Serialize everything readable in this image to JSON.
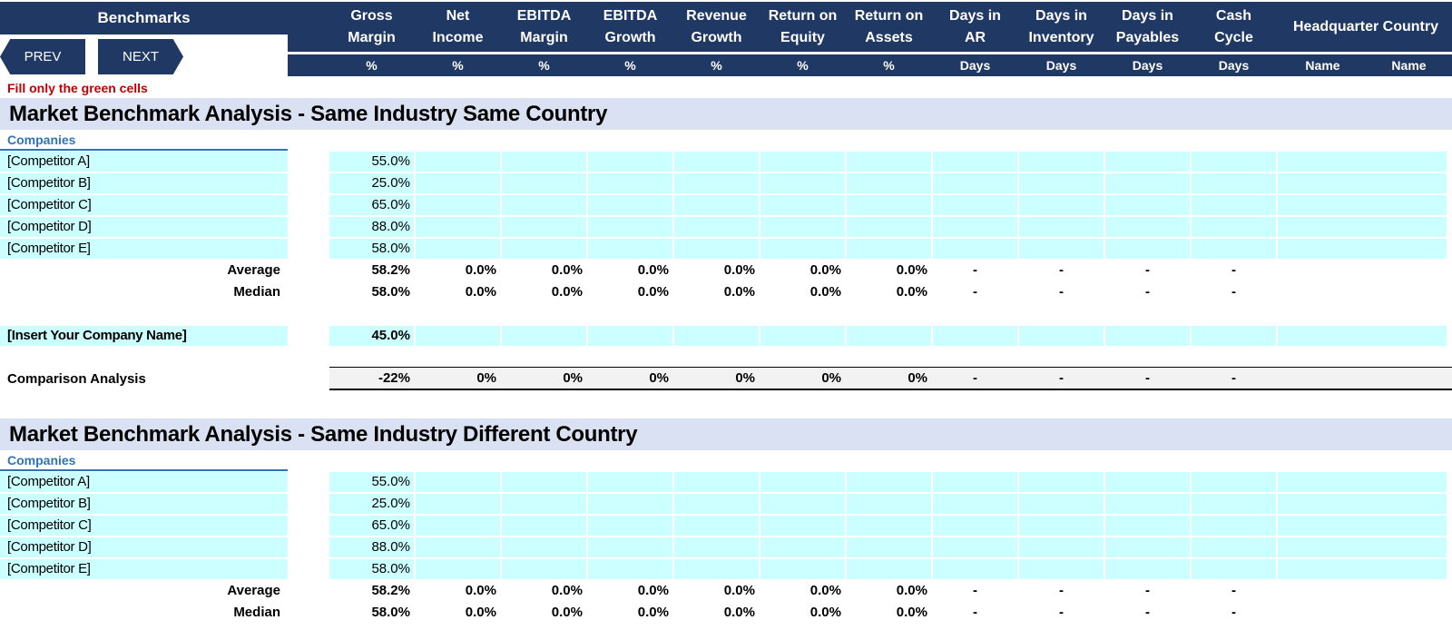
{
  "app": {
    "title": "Benchmarks",
    "prev_label": "PREV",
    "next_label": "NEXT",
    "note": "Fill only the green cells",
    "colors": {
      "header": "#1f3864",
      "input_cell": "#ccffff",
      "band": "#d9e1f2",
      "note": "#c00000",
      "companies": "#2e75b6"
    }
  },
  "columns": [
    {
      "title": "Gross\nMargin",
      "unit": "%"
    },
    {
      "title": "Net\nIncome",
      "unit": "%"
    },
    {
      "title": "EBITDA\nMargin",
      "unit": "%"
    },
    {
      "title": "EBITDA\nGrowth",
      "unit": "%"
    },
    {
      "title": "Revenue\nGrowth",
      "unit": "%"
    },
    {
      "title": "Return on\nEquity",
      "unit": "%"
    },
    {
      "title": "Return on\nAssets",
      "unit": "%"
    },
    {
      "title": "Days in\nAR",
      "unit": "Days"
    },
    {
      "title": "Days in\nInventory",
      "unit": "Days"
    },
    {
      "title": "Days in\nPayables",
      "unit": "Days"
    },
    {
      "title": "Cash\nCycle",
      "unit": "Days"
    }
  ],
  "hq_column": {
    "title": "Headquarter Country",
    "unit1": "Name",
    "unit2": "Name"
  },
  "sections": [
    {
      "title": "Market Benchmark Analysis - Same Industry Same Country",
      "companies_label": "Companies",
      "competitors": [
        {
          "name": "[Competitor A]",
          "gross_margin": "55.0%"
        },
        {
          "name": "[Competitor B]",
          "gross_margin": "25.0%"
        },
        {
          "name": "[Competitor C]",
          "gross_margin": "65.0%"
        },
        {
          "name": "[Competitor D]",
          "gross_margin": "88.0%"
        },
        {
          "name": "[Competitor E]",
          "gross_margin": "58.0%"
        }
      ],
      "average": {
        "label": "Average",
        "values": [
          "58.2%",
          "0.0%",
          "0.0%",
          "0.0%",
          "0.0%",
          "0.0%",
          "0.0%",
          "-",
          "-",
          "-",
          "-"
        ]
      },
      "median": {
        "label": "Median",
        "values": [
          "58.0%",
          "0.0%",
          "0.0%",
          "0.0%",
          "0.0%",
          "0.0%",
          "0.0%",
          "-",
          "-",
          "-",
          "-"
        ]
      },
      "company": {
        "name": "[Insert Your Company Name]",
        "gross_margin": "45.0%"
      },
      "comparison": {
        "label": "Comparison Analysis",
        "values": [
          "-22%",
          "0%",
          "0%",
          "0%",
          "0%",
          "0%",
          "0%",
          "-",
          "-",
          "-",
          "-"
        ]
      }
    },
    {
      "title": "Market Benchmark Analysis - Same Industry Different Country",
      "companies_label": "Companies",
      "competitors": [
        {
          "name": "[Competitor A]",
          "gross_margin": "55.0%"
        },
        {
          "name": "[Competitor B]",
          "gross_margin": "25.0%"
        },
        {
          "name": "[Competitor C]",
          "gross_margin": "65.0%"
        },
        {
          "name": "[Competitor D]",
          "gross_margin": "88.0%"
        },
        {
          "name": "[Competitor E]",
          "gross_margin": "58.0%"
        }
      ],
      "average": {
        "label": "Average",
        "values": [
          "58.2%",
          "0.0%",
          "0.0%",
          "0.0%",
          "0.0%",
          "0.0%",
          "0.0%",
          "-",
          "-",
          "-",
          "-"
        ]
      },
      "median": {
        "label": "Median",
        "values": [
          "58.0%",
          "0.0%",
          "0.0%",
          "0.0%",
          "0.0%",
          "0.0%",
          "0.0%",
          "-",
          "-",
          "-",
          "-"
        ]
      }
    }
  ]
}
